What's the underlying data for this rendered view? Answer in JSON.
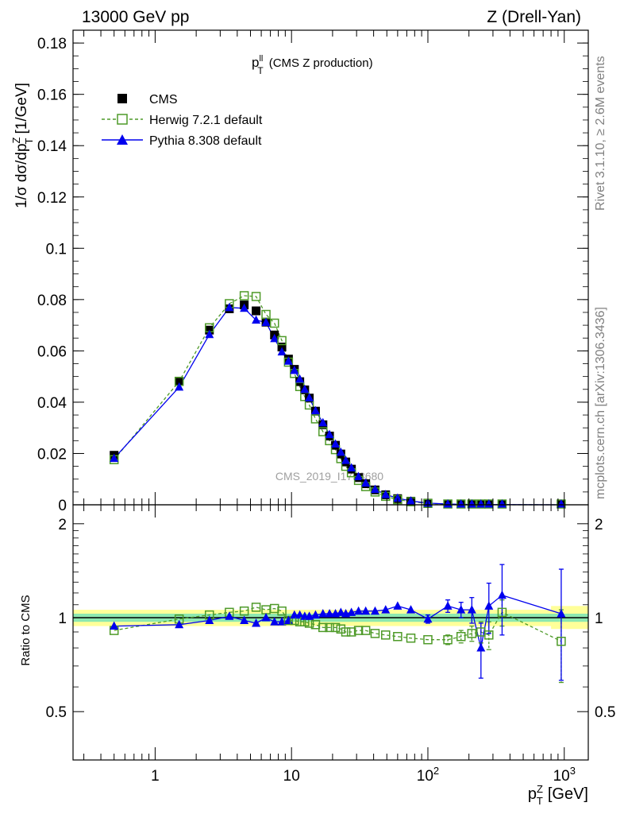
{
  "header": {
    "left": "13000 GeV pp",
    "right": "Z (Drell-Yan)"
  },
  "side_labels": {
    "rivet": "Rivet 3.1.10, ≥ 2.6M events",
    "mcplots": "mcplots.cern.ch [arXiv:1306.3436]"
  },
  "watermark": "CMS_2019_I1753680",
  "chart_data": [
    {
      "type": "scatter",
      "title_main": "p",
      "title_sup": "ll",
      "title_sub": "T",
      "title_rest": "(CMS Z production)",
      "ylabel": "1/σ dσ/dp",
      "ylabel_sup": "Z",
      "ylabel_sub": "T",
      "ylabel_unit": "[1/GeV]",
      "xscale": "log",
      "xlim": [
        0.25,
        1500
      ],
      "ylim": [
        0,
        0.185
      ],
      "yticks": [
        "0",
        "0.02",
        "0.04",
        "0.06",
        "0.08",
        "0.1",
        "0.12",
        "0.14",
        "0.16",
        "0.18"
      ],
      "legend_position": "top-left",
      "x": [
        0.5,
        1.5,
        2.5,
        3.5,
        4.5,
        5.5,
        6.5,
        7.5,
        8.5,
        9.5,
        10.5,
        11.5,
        12.5,
        13.5,
        15,
        17,
        19,
        21,
        23,
        25,
        27.5,
        31,
        35,
        41,
        49,
        60,
        75,
        100,
        140,
        175,
        210,
        245,
        280,
        350,
        950
      ],
      "series": [
        {
          "name": "CMS",
          "style": "data",
          "color": "#000000",
          "values": [
            0.0193,
            0.0482,
            0.0681,
            0.0764,
            0.0779,
            0.0756,
            0.0712,
            0.0662,
            0.0615,
            0.0568,
            0.0528,
            0.048,
            0.0448,
            0.0416,
            0.0365,
            0.0312,
            0.0268,
            0.0232,
            0.0198,
            0.0167,
            0.0139,
            0.0106,
            0.0082,
            0.0058,
            0.0039,
            0.0024,
            0.0014,
            0.00065,
            0.00028,
            0.00016,
            0.00011,
            8e-05,
            6e-05,
            4e-05,
            1e-05
          ]
        },
        {
          "name": "Herwig 7.2.1 default",
          "style": "open-square-dashed",
          "color": "#4e9a28",
          "values": [
            0.0176,
            0.0481,
            0.069,
            0.0784,
            0.0815,
            0.0812,
            0.0742,
            0.0708,
            0.064,
            0.0556,
            0.0512,
            0.0461,
            0.0422,
            0.0389,
            0.0335,
            0.0285,
            0.025,
            0.0215,
            0.018,
            0.015,
            0.0125,
            0.0095,
            0.0071,
            0.005,
            0.0033,
            0.002,
            0.0012,
            0.00055,
            0.00024,
            0.00014,
            0.0001,
            7e-05,
            5e-05,
            4e-05,
            1e-05
          ]
        },
        {
          "name": "Pythia 8.308 default",
          "style": "filled-triangle-solid",
          "color": "#0000ee",
          "values": [
            0.0181,
            0.0459,
            0.0664,
            0.0769,
            0.0766,
            0.072,
            0.0711,
            0.0648,
            0.0596,
            0.056,
            0.0524,
            0.049,
            0.045,
            0.0417,
            0.0367,
            0.032,
            0.0274,
            0.0237,
            0.0205,
            0.0173,
            0.0144,
            0.011,
            0.0085,
            0.006,
            0.004,
            0.0026,
            0.0015,
            0.00065,
            0.00031,
            0.00018,
            0.0001,
            9e-05,
            6e-05,
            5e-05,
            1e-05
          ]
        }
      ]
    },
    {
      "type": "scatter",
      "ylabel": "Ratio to CMS",
      "xlabel": "p",
      "xlabel_sup": "Z",
      "xlabel_sub": "T",
      "xlabel_unit": "[GeV]",
      "xscale": "log",
      "xlim": [
        0.25,
        1500
      ],
      "ylim": [
        0.35,
        2.3
      ],
      "yticks": [
        "0.5",
        "1",
        "2"
      ],
      "xticks": [
        {
          "value": 1,
          "base": "1",
          "exp": ""
        },
        {
          "value": 10,
          "base": "10",
          "exp": ""
        },
        {
          "value": 100,
          "base": "10",
          "exp": "2"
        },
        {
          "value": 1000,
          "base": "10",
          "exp": "3"
        }
      ],
      "reference": 1,
      "band_inner": [
        0.97,
        1.03
      ],
      "band_outer": [
        0.94,
        1.06
      ],
      "band_outer_high_x": [
        800,
        1500
      ],
      "band_outer_high": [
        0.92,
        1.09
      ],
      "x": [
        0.5,
        1.5,
        2.5,
        3.5,
        4.5,
        5.5,
        6.5,
        7.5,
        8.5,
        9.5,
        10.5,
        11.5,
        12.5,
        13.5,
        15,
        17,
        19,
        21,
        23,
        25,
        27.5,
        31,
        35,
        41,
        49,
        60,
        75,
        100,
        140,
        175,
        210,
        245,
        280,
        350,
        950
      ],
      "series": [
        {
          "name": "Herwig 7.2.1 default",
          "color": "#4e9a28",
          "values": [
            0.91,
            0.99,
            1.02,
            1.04,
            1.05,
            1.08,
            1.06,
            1.07,
            1.05,
            0.98,
            0.98,
            0.97,
            0.97,
            0.96,
            0.95,
            0.93,
            0.93,
            0.93,
            0.92,
            0.9,
            0.9,
            0.91,
            0.91,
            0.89,
            0.88,
            0.87,
            0.86,
            0.85,
            0.85,
            0.87,
            0.89,
            0.9,
            0.88,
            1.04,
            0.84
          ],
          "errors": [
            0,
            0,
            0,
            0,
            0,
            0,
            0,
            0,
            0,
            0,
            0,
            0,
            0,
            0,
            0,
            0,
            0,
            0,
            0,
            0,
            0,
            0,
            0,
            0,
            0,
            0,
            0,
            0,
            0.03,
            0.04,
            0.05,
            0.07,
            0.09,
            0.1,
            0.22
          ]
        },
        {
          "name": "Pythia 8.308 default",
          "color": "#0000ee",
          "values": [
            0.94,
            0.95,
            0.98,
            1.01,
            0.98,
            0.96,
            1.0,
            0.97,
            0.97,
            0.98,
            1.02,
            1.02,
            1.01,
            1.01,
            1.02,
            1.03,
            1.03,
            1.03,
            1.04,
            1.03,
            1.04,
            1.05,
            1.05,
            1.05,
            1.06,
            1.09,
            1.06,
            0.99,
            1.09,
            1.06,
            1.06,
            0.8,
            1.09,
            1.18,
            1.03
          ],
          "errors": [
            0,
            0,
            0,
            0,
            0,
            0,
            0,
            0,
            0,
            0,
            0,
            0,
            0,
            0,
            0,
            0,
            0,
            0,
            0,
            0,
            0,
            0,
            0,
            0,
            0,
            0,
            0,
            0.03,
            0.05,
            0.06,
            0.1,
            0.16,
            0.2,
            0.3,
            0.4
          ]
        }
      ]
    }
  ]
}
